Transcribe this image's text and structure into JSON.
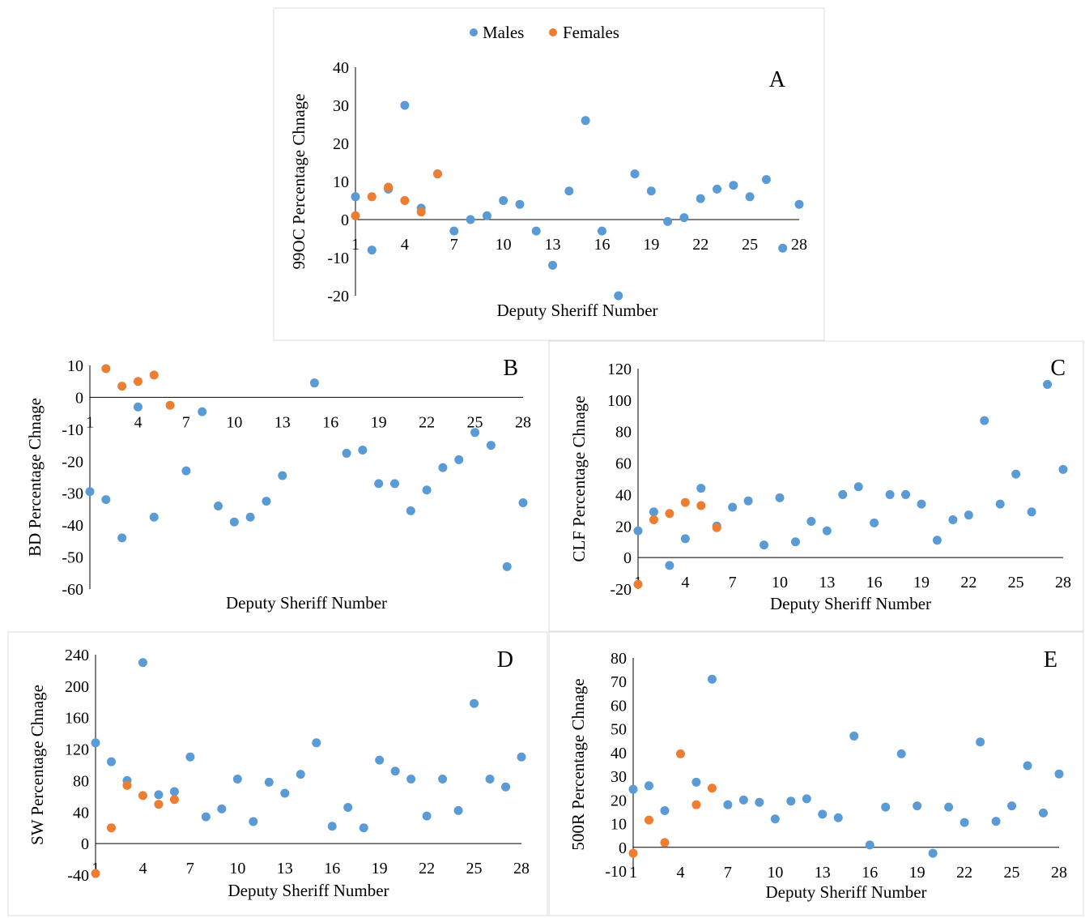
{
  "legend": {
    "males_label": "Males",
    "females_label": "Females"
  },
  "colors": {
    "males": "#5B9BD5",
    "females": "#ED7D31"
  },
  "chart_data": [
    {
      "id": "A",
      "type": "scatter",
      "panel_label": "A",
      "xlabel": "Deputy Sheriff Number",
      "ylabel": "99OC Percentage Chnage",
      "xlim": [
        1,
        28
      ],
      "ylim": [
        -20,
        40
      ],
      "yticks": [
        -20,
        -10,
        0,
        10,
        20,
        30,
        40
      ],
      "xticks": [
        1,
        4,
        7,
        10,
        13,
        16,
        19,
        22,
        25,
        28
      ],
      "series": [
        {
          "name": "Males",
          "points": [
            [
              1,
              6
            ],
            [
              2,
              -8
            ],
            [
              3,
              8
            ],
            [
              4,
              30
            ],
            [
              5,
              3
            ],
            [
              6,
              12
            ],
            [
              7,
              -3
            ],
            [
              8,
              0
            ],
            [
              9,
              1
            ],
            [
              10,
              5
            ],
            [
              11,
              4
            ],
            [
              12,
              -3
            ],
            [
              13,
              -12
            ],
            [
              14,
              7.5
            ],
            [
              15,
              26
            ],
            [
              16,
              -3
            ],
            [
              17,
              -20
            ],
            [
              18,
              12
            ],
            [
              19,
              7.5
            ],
            [
              20,
              -0.5
            ],
            [
              21,
              0.5
            ],
            [
              22,
              5.5
            ],
            [
              23,
              8
            ],
            [
              24,
              9
            ],
            [
              25,
              6
            ],
            [
              26,
              10.5
            ],
            [
              27,
              -7.5
            ],
            [
              28,
              4
            ]
          ]
        },
        {
          "name": "Females",
          "points": [
            [
              1,
              1
            ],
            [
              2,
              6
            ],
            [
              3,
              8.5
            ],
            [
              4,
              5
            ],
            [
              5,
              2
            ],
            [
              6,
              12
            ]
          ]
        }
      ]
    },
    {
      "id": "B",
      "type": "scatter",
      "panel_label": "B",
      "xlabel": "Deputy Sheriff Number",
      "ylabel": "BD Percentage Chnage",
      "xlim": [
        1,
        28
      ],
      "ylim": [
        -60,
        10
      ],
      "yticks": [
        -60,
        -50,
        -40,
        -30,
        -20,
        -10,
        0,
        10
      ],
      "xticks": [
        1,
        4,
        7,
        10,
        13,
        16,
        19,
        22,
        25,
        28
      ],
      "series": [
        {
          "name": "Males",
          "points": [
            [
              1,
              -29.5
            ],
            [
              2,
              -32
            ],
            [
              3,
              -44
            ],
            [
              4,
              -3
            ],
            [
              5,
              -37.5
            ],
            [
              7,
              -23
            ],
            [
              8,
              -4.5
            ],
            [
              9,
              -34
            ],
            [
              10,
              -39
            ],
            [
              11,
              -37.5
            ],
            [
              12,
              -32.5
            ],
            [
              13,
              -24.5
            ],
            [
              15,
              4.5
            ],
            [
              17,
              -17.5
            ],
            [
              18,
              -16.5
            ],
            [
              19,
              -27
            ],
            [
              20,
              -27
            ],
            [
              21,
              -35.5
            ],
            [
              22,
              -29
            ],
            [
              23,
              -22
            ],
            [
              24,
              -19.5
            ],
            [
              25,
              -11
            ],
            [
              26,
              -15
            ],
            [
              27,
              -53
            ],
            [
              28,
              -33
            ]
          ]
        },
        {
          "name": "Females",
          "points": [
            [
              2,
              9
            ],
            [
              3,
              3.5
            ],
            [
              4,
              5
            ],
            [
              5,
              7
            ],
            [
              6,
              -2.5
            ]
          ]
        }
      ]
    },
    {
      "id": "C",
      "type": "scatter",
      "panel_label": "C",
      "xlabel": "Deputy Sheriff Number",
      "ylabel": "CLF Percentage Chnage",
      "xlim": [
        1,
        28
      ],
      "ylim": [
        -20,
        120
      ],
      "yticks": [
        -20,
        0,
        20,
        40,
        60,
        80,
        100,
        120
      ],
      "xticks": [
        1,
        4,
        7,
        10,
        13,
        16,
        19,
        22,
        25,
        28
      ],
      "series": [
        {
          "name": "Males",
          "points": [
            [
              1,
              17
            ],
            [
              2,
              29
            ],
            [
              3,
              -5
            ],
            [
              4,
              12
            ],
            [
              5,
              44
            ],
            [
              6,
              20
            ],
            [
              7,
              32
            ],
            [
              8,
              36
            ],
            [
              9,
              8
            ],
            [
              10,
              38
            ],
            [
              11,
              10
            ],
            [
              12,
              23
            ],
            [
              13,
              17
            ],
            [
              14,
              40
            ],
            [
              15,
              45
            ],
            [
              16,
              22
            ],
            [
              17,
              40
            ],
            [
              18,
              40
            ],
            [
              19,
              34
            ],
            [
              20,
              11
            ],
            [
              21,
              24
            ],
            [
              22,
              27
            ],
            [
              23,
              87
            ],
            [
              24,
              34
            ],
            [
              25,
              53
            ],
            [
              26,
              29
            ],
            [
              27,
              110
            ],
            [
              28,
              56
            ]
          ]
        },
        {
          "name": "Females",
          "points": [
            [
              1,
              -17
            ],
            [
              2,
              24
            ],
            [
              3,
              28
            ],
            [
              4,
              35
            ],
            [
              5,
              33
            ],
            [
              6,
              19
            ]
          ]
        }
      ]
    },
    {
      "id": "D",
      "type": "scatter",
      "panel_label": "D",
      "xlabel": "Deputy Sheriff Number",
      "ylabel": "SW Percentage Chnage",
      "xlim": [
        1,
        28
      ],
      "ylim": [
        -40,
        240
      ],
      "yticks": [
        -40,
        0,
        40,
        80,
        120,
        160,
        200,
        240
      ],
      "xticks": [
        1,
        4,
        7,
        10,
        13,
        16,
        19,
        22,
        25,
        28
      ],
      "series": [
        {
          "name": "Males",
          "points": [
            [
              1,
              128
            ],
            [
              2,
              104
            ],
            [
              3,
              80
            ],
            [
              4,
              230
            ],
            [
              5,
              62
            ],
            [
              6,
              66
            ],
            [
              7,
              110
            ],
            [
              8,
              34
            ],
            [
              9,
              44
            ],
            [
              10,
              82
            ],
            [
              11,
              28
            ],
            [
              12,
              78
            ],
            [
              13,
              64
            ],
            [
              14,
              88
            ],
            [
              15,
              128
            ],
            [
              16,
              22
            ],
            [
              17,
              46
            ],
            [
              18,
              20
            ],
            [
              19,
              106
            ],
            [
              20,
              92
            ],
            [
              21,
              82
            ],
            [
              22,
              35
            ],
            [
              23,
              82
            ],
            [
              24,
              42
            ],
            [
              25,
              178
            ],
            [
              26,
              82
            ],
            [
              27,
              72
            ],
            [
              28,
              110
            ]
          ]
        },
        {
          "name": "Females",
          "points": [
            [
              1,
              -38
            ],
            [
              2,
              20
            ],
            [
              3,
              74
            ],
            [
              4,
              61
            ],
            [
              5,
              50
            ],
            [
              6,
              56
            ]
          ]
        }
      ]
    },
    {
      "id": "E",
      "type": "scatter",
      "panel_label": "E",
      "xlabel": "Deputy Sheriff Number",
      "ylabel": "500R Percentage Chnage",
      "xlim": [
        1,
        28
      ],
      "ylim": [
        -10,
        80
      ],
      "yticks": [
        -10,
        0,
        10,
        20,
        30,
        40,
        50,
        60,
        70,
        80
      ],
      "xticks": [
        1,
        4,
        7,
        10,
        13,
        16,
        19,
        22,
        25,
        28
      ],
      "series": [
        {
          "name": "Males",
          "points": [
            [
              1,
              24.5
            ],
            [
              2,
              26
            ],
            [
              3,
              15.5
            ],
            [
              5,
              27.5
            ],
            [
              6,
              71
            ],
            [
              7,
              18
            ],
            [
              8,
              20
            ],
            [
              9,
              19
            ],
            [
              10,
              12
            ],
            [
              11,
              19.5
            ],
            [
              12,
              20.5
            ],
            [
              13,
              14
            ],
            [
              14,
              12.5
            ],
            [
              15,
              47
            ],
            [
              16,
              1
            ],
            [
              17,
              17
            ],
            [
              18,
              39.5
            ],
            [
              19,
              17.5
            ],
            [
              20,
              -2.5
            ],
            [
              21,
              17
            ],
            [
              22,
              10.5
            ],
            [
              23,
              44.5
            ],
            [
              24,
              11
            ],
            [
              25,
              17.5
            ],
            [
              26,
              34.5
            ],
            [
              27,
              14.5
            ],
            [
              28,
              31
            ]
          ]
        },
        {
          "name": "Females",
          "points": [
            [
              1,
              -2.5
            ],
            [
              2,
              11.5
            ],
            [
              3,
              2
            ],
            [
              4,
              39.5
            ],
            [
              5,
              18
            ],
            [
              6,
              25
            ]
          ]
        }
      ]
    }
  ]
}
